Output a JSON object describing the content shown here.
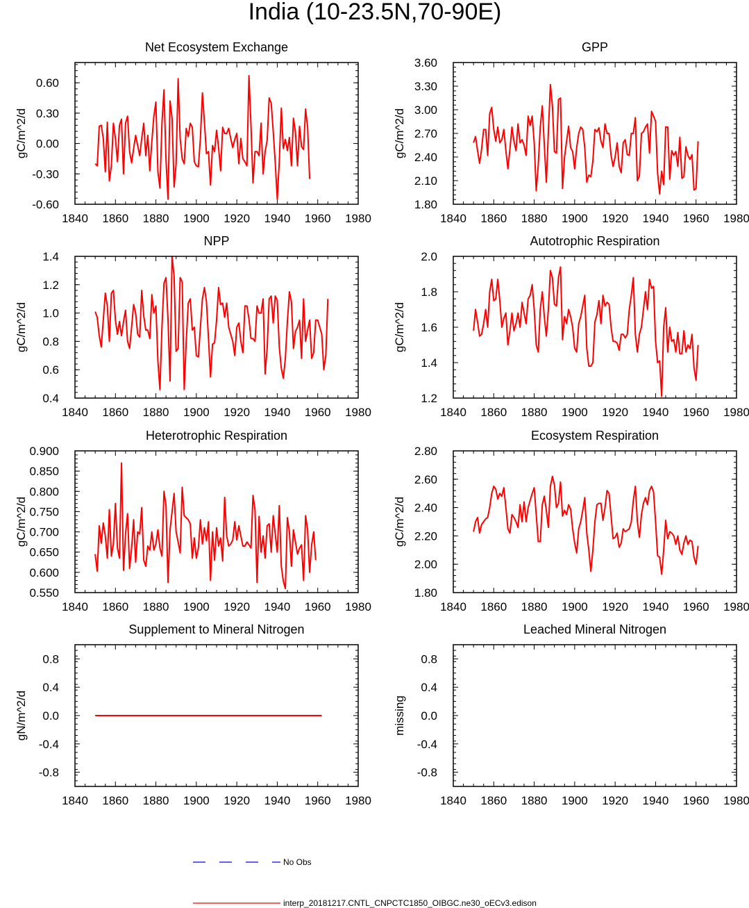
{
  "figure": {
    "title": "India (10-23.5N,70-90E)",
    "colors": {
      "model": "#ff0000",
      "obs": "#0000ff",
      "axis": "#000000"
    }
  },
  "legend": {
    "entries": [
      {
        "label": "No Obs",
        "color": "#0000ff",
        "style": "dashed"
      },
      {
        "label": "interp_20181217.CNTL_CNPCTC1850_OIBGC.ne30_oECv3.edison",
        "color": "#ff0000",
        "style": "solid"
      }
    ]
  },
  "chart_data": [
    {
      "type": "line",
      "title": "Net Ecosystem Exchange",
      "ylabel": "gC/m^2/d",
      "xlim": [
        1840,
        1980
      ],
      "xticks": [
        1840,
        1860,
        1880,
        1900,
        1920,
        1940,
        1960,
        1980
      ],
      "ylim": [
        -0.6,
        0.8
      ],
      "yticks": [
        -0.6,
        -0.3,
        0.0,
        0.3,
        0.6
      ],
      "ytick_labels": [
        "-0.60",
        "-0.30",
        "0.00",
        "0.30",
        "0.60"
      ],
      "yminor_step": 0.06,
      "series": [
        {
          "name": "model",
          "color": "#ff0000",
          "x_start": 1850,
          "x_step": 1,
          "values": [
            -0.2,
            -0.22,
            0.17,
            0.18,
            0.05,
            -0.28,
            0.21,
            -0.37,
            -0.22,
            0.2,
            0.05,
            -0.18,
            0.18,
            0.24,
            -0.3,
            0.2,
            0.27,
            -0.08,
            -0.19,
            -0.05,
            0.08,
            -0.02,
            -0.12,
            0.05,
            0.2,
            -0.12,
            0.08,
            -0.27,
            0.02,
            0.27,
            0.41,
            -0.28,
            -0.44,
            0.2,
            0.53,
            -0.16,
            -0.55,
            0.42,
            0.25,
            -0.43,
            -0.2,
            0.64,
            0.05,
            -0.15,
            -0.2,
            0.15,
            0.07,
            0.2,
            0.16,
            -0.18,
            -0.22,
            -0.23,
            0.05,
            0.5,
            0.21,
            -0.1,
            -0.08,
            -0.41,
            -0.02,
            -0.08,
            0.13,
            -0.04,
            -0.27,
            0.16,
            0.1,
            0.1,
            0.15,
            0.05,
            -0.04,
            0.04,
            0.1,
            -0.2,
            0.05,
            -0.15,
            -0.18,
            -0.22,
            0.67,
            0.18,
            -0.39,
            -0.08,
            -0.08,
            -0.12,
            0.2,
            -0.3,
            -0.08,
            0.03,
            0.45,
            0.4,
            0.12,
            -0.19,
            -0.55,
            -0.18,
            0.35,
            -0.05,
            0.04,
            -0.07,
            0.06,
            -0.22,
            0.25,
            0.11,
            -0.22,
            0.17,
            -0.03,
            -0.06,
            0.34,
            0.16,
            -0.35
          ]
        }
      ]
    },
    {
      "type": "line",
      "title": "GPP",
      "ylabel": "gC/m^2/d",
      "xlim": [
        1840,
        1980
      ],
      "xticks": [
        1840,
        1860,
        1880,
        1900,
        1920,
        1940,
        1960,
        1980
      ],
      "ylim": [
        1.8,
        3.6
      ],
      "yticks": [
        1.8,
        2.1,
        2.4,
        2.7,
        3.0,
        3.3,
        3.6
      ],
      "ytick_labels": [
        "1.80",
        "2.10",
        "2.40",
        "2.70",
        "3.00",
        "3.30",
        "3.60"
      ],
      "yminor_step": 0.06,
      "series": [
        {
          "name": "model",
          "color": "#ff0000",
          "x_start": 1850,
          "x_step": 1,
          "values": [
            2.58,
            2.66,
            2.48,
            2.32,
            2.5,
            2.75,
            2.75,
            2.42,
            2.95,
            3.03,
            2.75,
            2.6,
            2.78,
            2.58,
            2.62,
            2.75,
            2.48,
            2.25,
            2.5,
            2.78,
            2.6,
            2.48,
            2.82,
            2.58,
            2.62,
            2.55,
            2.42,
            2.92,
            2.8,
            2.92,
            2.58,
            1.97,
            2.3,
            2.78,
            3.05,
            2.55,
            2.08,
            2.72,
            3.32,
            3.05,
            2.47,
            2.45,
            3.13,
            3.15,
            2.0,
            2.4,
            2.6,
            2.79,
            2.52,
            2.47,
            2.25,
            2.52,
            2.7,
            2.78,
            2.75,
            2.52,
            2.08,
            2.17,
            2.15,
            2.35,
            2.75,
            2.72,
            2.77,
            2.6,
            2.52,
            2.82,
            2.7,
            2.7,
            2.42,
            2.28,
            2.4,
            2.58,
            2.28,
            2.2,
            2.58,
            2.62,
            2.43,
            2.42,
            2.7,
            2.7,
            2.9,
            2.1,
            2.16,
            2.7,
            2.72,
            2.78,
            2.82,
            2.45,
            2.98,
            2.92,
            2.85,
            2.2,
            1.93,
            2.22,
            2.05,
            2.78,
            2.78,
            2.12,
            2.48,
            2.42,
            2.47,
            2.28,
            2.65,
            2.13,
            2.15,
            2.53,
            2.42,
            2.37,
            2.43,
            1.98,
            2.0,
            2.6
          ]
        }
      ]
    },
    {
      "type": "line",
      "title": "NPP",
      "ylabel": "gC/m^2/d",
      "xlim": [
        1840,
        1980
      ],
      "xticks": [
        1840,
        1860,
        1880,
        1900,
        1920,
        1940,
        1960,
        1980
      ],
      "ylim": [
        0.4,
        1.4
      ],
      "yticks": [
        0.4,
        0.6,
        0.8,
        1.0,
        1.2,
        1.4
      ],
      "ytick_labels": [
        "0.4",
        "0.6",
        "0.8",
        "1.0",
        "1.2",
        "1.4"
      ],
      "yminor_step": 0.04,
      "series": [
        {
          "name": "model",
          "color": "#ff0000",
          "x_start": 1850,
          "x_step": 1,
          "values": [
            1.01,
            0.97,
            0.84,
            0.76,
            0.95,
            1.14,
            1.05,
            0.8,
            1.14,
            1.16,
            0.95,
            0.85,
            0.94,
            0.84,
            0.94,
            1.02,
            0.8,
            0.75,
            0.9,
            1.06,
            1.0,
            0.85,
            0.83,
            1.16,
            0.98,
            0.88,
            0.88,
            0.82,
            1.13,
            1.0,
            1.05,
            0.66,
            0.46,
            0.9,
            1.21,
            1.25,
            0.95,
            0.52,
            1.4,
            1.26,
            0.73,
            0.75,
            1.25,
            1.22,
            0.46,
            0.8,
            1.07,
            1.1,
            0.88,
            0.9,
            0.7,
            0.69,
            0.9,
            1.1,
            1.18,
            1.08,
            0.82,
            0.55,
            0.78,
            0.79,
            0.95,
            1.18,
            1.06,
            1.07,
            0.97,
            1.07,
            0.9,
            0.85,
            0.8,
            0.7,
            0.9,
            0.93,
            0.8,
            0.72,
            1.05,
            1.05,
            0.96,
            0.82,
            0.82,
            0.8,
            1.05,
            1.0,
            1.0,
            1.1,
            0.57,
            0.75,
            1.1,
            1.12,
            0.93,
            1.12,
            1.09,
            0.76,
            0.61,
            0.54,
            0.68,
            0.94,
            1.15,
            1.08,
            0.75,
            0.87,
            0.9,
            0.95,
            0.68,
            1.1,
            0.8,
            0.88,
            0.95,
            0.68,
            0.72,
            0.95,
            0.95,
            0.9,
            0.85,
            0.6,
            0.7,
            1.1
          ]
        }
      ]
    },
    {
      "type": "line",
      "title": "Autotrophic Respiration",
      "ylabel": "gC/m^2/d",
      "xlim": [
        1840,
        1980
      ],
      "xticks": [
        1840,
        1860,
        1880,
        1900,
        1920,
        1940,
        1960,
        1980
      ],
      "ylim": [
        1.2,
        2.0
      ],
      "yticks": [
        1.2,
        1.4,
        1.6,
        1.8,
        2.0
      ],
      "ytick_labels": [
        "1.2",
        "1.4",
        "1.6",
        "1.8",
        "2.0"
      ],
      "yminor_step": 0.04,
      "series": [
        {
          "name": "model",
          "color": "#ff0000",
          "x_start": 1850,
          "x_step": 1,
          "values": [
            1.58,
            1.7,
            1.63,
            1.55,
            1.56,
            1.62,
            1.7,
            1.6,
            1.8,
            1.87,
            1.75,
            1.76,
            1.87,
            1.75,
            1.6,
            1.65,
            1.68,
            1.5,
            1.58,
            1.68,
            1.58,
            1.62,
            1.68,
            1.6,
            1.74,
            1.68,
            1.62,
            1.76,
            1.78,
            1.84,
            1.7,
            1.5,
            1.46,
            1.7,
            1.8,
            1.66,
            1.55,
            1.7,
            1.92,
            1.88,
            1.73,
            1.72,
            1.88,
            1.94,
            1.53,
            1.66,
            1.62,
            1.7,
            1.66,
            1.6,
            1.48,
            1.46,
            1.62,
            1.66,
            1.72,
            1.78,
            1.48,
            1.38,
            1.38,
            1.4,
            1.63,
            1.67,
            1.75,
            1.62,
            1.78,
            1.72,
            1.74,
            1.73,
            1.6,
            1.52,
            1.52,
            1.51,
            1.47,
            1.56,
            1.56,
            1.54,
            1.56,
            1.7,
            1.78,
            1.88,
            1.56,
            1.46,
            1.56,
            1.6,
            1.7,
            1.8,
            1.7,
            1.87,
            1.82,
            1.83,
            1.52,
            1.4,
            1.41,
            1.21,
            1.6,
            1.71,
            1.46,
            1.6,
            1.52,
            1.53,
            1.46,
            1.57,
            1.45,
            1.45,
            1.58,
            1.46,
            1.5,
            1.48,
            1.56,
            1.37,
            1.3,
            1.5
          ]
        }
      ]
    },
    {
      "type": "line",
      "title": "Heterotrophic Respiration",
      "ylabel": "gC/m^2/d",
      "xlim": [
        1840,
        1980
      ],
      "xticks": [
        1840,
        1860,
        1880,
        1900,
        1920,
        1940,
        1960,
        1980
      ],
      "ylim": [
        0.55,
        0.9
      ],
      "yticks": [
        0.55,
        0.6,
        0.65,
        0.7,
        0.75,
        0.8,
        0.85,
        0.9
      ],
      "ytick_labels": [
        "0.550",
        "0.600",
        "0.650",
        "0.700",
        "0.750",
        "0.800",
        "0.850",
        "0.900"
      ],
      "yminor_step": 0.01,
      "series": [
        {
          "name": "model",
          "color": "#ff0000",
          "x_start": 1850,
          "x_step": 1,
          "values": [
            0.645,
            0.603,
            0.715,
            0.672,
            0.722,
            0.69,
            0.635,
            0.755,
            0.64,
            0.67,
            0.77,
            0.66,
            0.635,
            0.87,
            0.605,
            0.695,
            0.745,
            0.61,
            0.66,
            0.73,
            0.625,
            0.7,
            0.695,
            0.76,
            0.63,
            0.615,
            0.665,
            0.655,
            0.7,
            0.655,
            0.67,
            0.705,
            0.66,
            0.64,
            0.8,
            0.765,
            0.575,
            0.705,
            0.75,
            0.795,
            0.7,
            0.675,
            0.648,
            0.81,
            0.74,
            0.735,
            0.73,
            0.72,
            0.635,
            0.685,
            0.635,
            0.66,
            0.73,
            0.67,
            0.71,
            0.678,
            0.725,
            0.58,
            0.7,
            0.63,
            0.71,
            0.665,
            0.685,
            0.628,
            0.785,
            0.69,
            0.665,
            0.67,
            0.68,
            0.725,
            0.68,
            0.715,
            0.69,
            0.665,
            0.665,
            0.675,
            0.668,
            0.66,
            0.79,
            0.755,
            0.575,
            0.738,
            0.65,
            0.69,
            0.635,
            0.715,
            0.72,
            0.65,
            0.74,
            0.695,
            0.65,
            0.765,
            0.615,
            0.578,
            0.56,
            0.735,
            0.7,
            0.615,
            0.705,
            0.675,
            0.645,
            0.66,
            0.668,
            0.58,
            0.74,
            0.705,
            0.6,
            0.668,
            0.7,
            0.63
          ]
        }
      ]
    },
    {
      "type": "line",
      "title": "Ecosystem Respiration",
      "ylabel": "gC/m^2/d",
      "xlim": [
        1840,
        1980
      ],
      "xticks": [
        1840,
        1860,
        1880,
        1900,
        1920,
        1940,
        1960,
        1980
      ],
      "ylim": [
        1.8,
        2.8
      ],
      "yticks": [
        1.8,
        2.0,
        2.2,
        2.4,
        2.6,
        2.8
      ],
      "ytick_labels": [
        "1.80",
        "2.00",
        "2.20",
        "2.40",
        "2.60",
        "2.80"
      ],
      "yminor_step": 0.04,
      "series": [
        {
          "name": "model",
          "color": "#ff0000",
          "x_start": 1850,
          "x_step": 1,
          "values": [
            2.23,
            2.3,
            2.33,
            2.22,
            2.28,
            2.3,
            2.32,
            2.33,
            2.4,
            2.5,
            2.55,
            2.53,
            2.46,
            2.5,
            2.48,
            2.54,
            2.4,
            2.25,
            2.22,
            2.35,
            2.33,
            2.3,
            2.26,
            2.42,
            2.3,
            2.44,
            2.3,
            2.4,
            2.45,
            2.5,
            2.54,
            2.35,
            2.16,
            2.16,
            2.42,
            2.48,
            2.38,
            2.26,
            2.55,
            2.62,
            2.56,
            2.4,
            2.43,
            2.58,
            2.34,
            2.38,
            2.35,
            2.42,
            2.39,
            2.25,
            2.15,
            2.08,
            2.25,
            2.3,
            2.38,
            2.47,
            2.22,
            2.1,
            1.95,
            2.1,
            2.3,
            2.42,
            2.43,
            2.43,
            2.31,
            2.4,
            2.52,
            2.5,
            2.34,
            2.18,
            2.19,
            2.22,
            2.12,
            2.15,
            2.25,
            2.23,
            2.24,
            2.25,
            2.3,
            2.45,
            2.55,
            2.3,
            2.19,
            2.35,
            2.43,
            2.47,
            2.42,
            2.52,
            2.55,
            2.51,
            2.3,
            2.06,
            2.05,
            1.93,
            2.1,
            2.31,
            2.18,
            2.23,
            2.22,
            2.2,
            2.14,
            2.2,
            2.1,
            2.07,
            2.15,
            2.2,
            2.14,
            2.17,
            2.16,
            2.05,
            2.0,
            2.13
          ]
        }
      ]
    },
    {
      "type": "line",
      "title": "Supplement to Mineral Nitrogen",
      "ylabel": "gN/m^2/d",
      "xlim": [
        1840,
        1980
      ],
      "xticks": [
        1840,
        1860,
        1880,
        1900,
        1920,
        1940,
        1960,
        1980
      ],
      "ylim": [
        -1.0,
        1.0
      ],
      "yticks": [
        -0.8,
        -0.4,
        0.0,
        0.4,
        0.8
      ],
      "ytick_labels": [
        "-0.8",
        "-0.4",
        "0.0",
        "0.4",
        "0.8"
      ],
      "yminor_step": 0.08,
      "series": [
        {
          "name": "model",
          "color": "#ff0000",
          "x": [
            1850,
            1962
          ],
          "values": [
            0.0,
            0.0
          ]
        }
      ]
    },
    {
      "type": "line",
      "title": "Leached Mineral Nitrogen",
      "ylabel": "missing",
      "xlim": [
        1840,
        1980
      ],
      "xticks": [
        1840,
        1860,
        1880,
        1900,
        1920,
        1940,
        1960,
        1980
      ],
      "ylim": [
        -1.0,
        1.0
      ],
      "yticks": [
        -0.8,
        -0.4,
        0.0,
        0.4,
        0.8
      ],
      "ytick_labels": [
        "-0.8",
        "-0.4",
        "0.0",
        "0.4",
        "0.8"
      ],
      "yminor_step": 0.08,
      "series": []
    }
  ]
}
